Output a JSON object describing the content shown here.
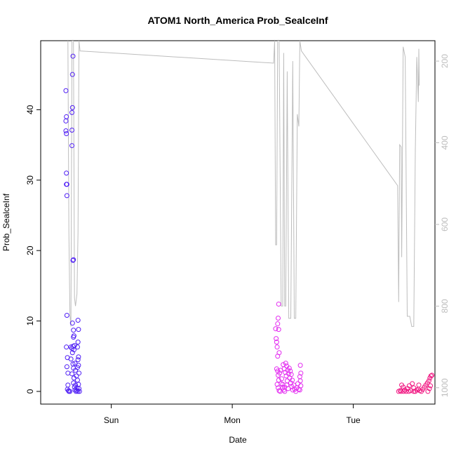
{
  "chart_data": {
    "type": "scatter",
    "title": "ATOM1 North_America Prob_SealceInf",
    "xlabel": "Date",
    "ylabel": "Prob_SealceInf",
    "x_ticks": [
      "Sun",
      "Mon",
      "Tue"
    ],
    "y_ticks": [
      0,
      10,
      20,
      30,
      40
    ],
    "y_range": [
      -1.8,
      49.8
    ],
    "right_axis": {
      "label": "",
      "reversed": true,
      "ticks": [
        200,
        400,
        600,
        800,
        1000
      ],
      "range": [
        1040,
        150
      ],
      "color": "#bdbdbd"
    },
    "x_units": "hours since Saturday 00:00",
    "x_range": [
      10.0,
      88.2
    ],
    "grid": false,
    "legend": "none",
    "colors": {
      "scatter_start": "#4f1ef5",
      "scatter_mid": "#e32bf0",
      "scatter_end": "#f0127f",
      "line": "#bdbdbd"
    },
    "series": [
      {
        "kind": "points",
        "color_key": "scatter_start",
        "points": [
          [
            15.0,
            42.7
          ],
          [
            15.1,
            39.0
          ],
          [
            15.0,
            38.4
          ],
          [
            15.0,
            37.0
          ],
          [
            15.1,
            36.6
          ],
          [
            15.1,
            31.0
          ],
          [
            15.2,
            29.4
          ],
          [
            15.1,
            29.4
          ],
          [
            15.2,
            27.8
          ],
          [
            15.2,
            10.8
          ],
          [
            15.1,
            6.3
          ],
          [
            15.3,
            4.8
          ],
          [
            15.2,
            3.5
          ],
          [
            15.4,
            2.6
          ],
          [
            15.4,
            0.9
          ],
          [
            15.3,
            0.3
          ],
          [
            15.5,
            0.1
          ],
          [
            15.6,
            0.0
          ],
          [
            15.8,
            0.0
          ],
          [
            16.0,
            6.3
          ],
          [
            16.2,
            6.1
          ],
          [
            16.3,
            5.5
          ],
          [
            16.0,
            4.6
          ],
          [
            16.4,
            3.9
          ],
          [
            16.5,
            3.3
          ],
          [
            16.2,
            2.5
          ],
          [
            16.6,
            1.9
          ],
          [
            16.5,
            1.2
          ],
          [
            16.7,
            0.6
          ],
          [
            16.8,
            0.2
          ],
          [
            17.0,
            0.0
          ],
          [
            17.2,
            0.1
          ],
          [
            16.8,
            4.0
          ],
          [
            16.9,
            3.0
          ],
          [
            17.1,
            2.2
          ],
          [
            16.9,
            0.9
          ],
          [
            17.2,
            0.5
          ],
          [
            17.3,
            1.6
          ],
          [
            16.3,
            45.0
          ],
          [
            16.4,
            47.6
          ],
          [
            16.3,
            40.3
          ],
          [
            16.2,
            39.6
          ],
          [
            16.2,
            37.1
          ],
          [
            16.2,
            34.9
          ],
          [
            16.5,
            18.7
          ],
          [
            16.4,
            18.6
          ],
          [
            16.3,
            9.7
          ],
          [
            16.5,
            8.7
          ],
          [
            16.6,
            7.9
          ],
          [
            16.5,
            7.7
          ],
          [
            16.7,
            6.5
          ],
          [
            16.4,
            6.4
          ],
          [
            16.6,
            5.9
          ],
          [
            17.4,
            10.1
          ],
          [
            17.5,
            8.8
          ],
          [
            17.4,
            7.0
          ],
          [
            17.3,
            6.3
          ],
          [
            17.5,
            4.9
          ],
          [
            17.4,
            4.5
          ],
          [
            17.5,
            3.7
          ],
          [
            17.3,
            3.4
          ],
          [
            17.6,
            2.6
          ],
          [
            17.5,
            1.0
          ],
          [
            17.6,
            0.4
          ],
          [
            17.7,
            0.0
          ],
          [
            17.4,
            0.0
          ]
        ]
      },
      {
        "kind": "points",
        "color_key": "scatter_mid",
        "points": [
          [
            56.6,
            8.9
          ],
          [
            56.7,
            7.5
          ],
          [
            56.8,
            7.0
          ],
          [
            56.9,
            6.3
          ],
          [
            57.0,
            5.0
          ],
          [
            56.8,
            3.2
          ],
          [
            57.0,
            2.9
          ],
          [
            57.1,
            2.3
          ],
          [
            57.2,
            1.6
          ],
          [
            56.9,
            1.0
          ],
          [
            57.1,
            0.5
          ],
          [
            57.3,
            0.1
          ],
          [
            57.5,
            0.0
          ],
          [
            57.2,
            12.4
          ],
          [
            57.1,
            10.4
          ],
          [
            57.0,
            9.6
          ],
          [
            57.2,
            8.8
          ],
          [
            57.3,
            5.5
          ],
          [
            57.6,
            3.0
          ],
          [
            57.4,
            2.6
          ],
          [
            57.8,
            1.8
          ],
          [
            57.7,
            1.1
          ],
          [
            58.0,
            0.5
          ],
          [
            58.2,
            0.2
          ],
          [
            58.4,
            0.0
          ],
          [
            58.1,
            3.8
          ],
          [
            58.3,
            3.2
          ],
          [
            58.5,
            2.7
          ],
          [
            58.7,
            2.2
          ],
          [
            58.9,
            1.5
          ],
          [
            58.6,
            4.0
          ],
          [
            58.8,
            3.6
          ],
          [
            59.0,
            3.0
          ],
          [
            59.2,
            2.5
          ],
          [
            59.4,
            1.9
          ],
          [
            59.6,
            1.2
          ],
          [
            59.8,
            0.7
          ],
          [
            60.0,
            0.2
          ],
          [
            59.3,
            3.3
          ],
          [
            59.5,
            2.9
          ],
          [
            59.7,
            2.4
          ],
          [
            59.9,
            1.6
          ],
          [
            60.2,
            0.9
          ],
          [
            60.4,
            0.3
          ],
          [
            60.6,
            0.0
          ],
          [
            61.5,
            3.7
          ],
          [
            61.6,
            2.6
          ],
          [
            61.4,
            2.1
          ],
          [
            61.5,
            1.5
          ],
          [
            61.6,
            0.8
          ],
          [
            61.4,
            0.2
          ],
          [
            58.0,
            1.0
          ],
          [
            58.4,
            0.6
          ],
          [
            58.8,
            0.9
          ],
          [
            59.1,
            0.4
          ],
          [
            60.8,
            0.5
          ],
          [
            61.0,
            1.1
          ],
          [
            61.2,
            0.3
          ]
        ]
      },
      {
        "kind": "points",
        "color_key": "scatter_end",
        "points": [
          [
            81.0,
            0.0
          ],
          [
            81.3,
            0.1
          ],
          [
            81.6,
            0.9
          ],
          [
            81.9,
            0.6
          ],
          [
            82.2,
            0.2
          ],
          [
            82.5,
            0.0
          ],
          [
            82.8,
            0.4
          ],
          [
            83.1,
            0.8
          ],
          [
            83.4,
            0.1
          ],
          [
            83.7,
            1.1
          ],
          [
            84.0,
            0.5
          ],
          [
            84.3,
            0.0
          ],
          [
            84.6,
            0.2
          ],
          [
            84.9,
            0.3
          ],
          [
            85.2,
            0.1
          ],
          [
            85.5,
            0.0
          ],
          [
            85.8,
            0.3
          ],
          [
            86.1,
            0.6
          ],
          [
            86.4,
            0.9
          ],
          [
            86.7,
            1.2
          ],
          [
            87.0,
            1.5
          ],
          [
            87.2,
            1.9
          ],
          [
            87.4,
            2.2
          ],
          [
            87.6,
            2.3
          ],
          [
            86.8,
            0.0
          ],
          [
            87.1,
            0.4
          ],
          [
            87.3,
            0.8
          ],
          [
            85.0,
            0.9
          ],
          [
            84.0,
            0.0
          ],
          [
            83.0,
            0.0
          ],
          [
            82.0,
            0.0
          ],
          [
            81.5,
            0.0
          ]
        ]
      },
      {
        "kind": "line",
        "axis": "right",
        "color_key": "line",
        "points": [
          [
            15.4,
            150
          ],
          [
            15.6,
            620
          ],
          [
            15.8,
            820
          ],
          [
            16.0,
            850
          ],
          [
            16.2,
            150
          ],
          [
            16.5,
            150
          ],
          [
            16.7,
            780
          ],
          [
            16.9,
            800
          ],
          [
            17.2,
            770
          ],
          [
            17.4,
            620
          ],
          [
            17.6,
            150
          ],
          [
            17.8,
            175
          ],
          [
            56.2,
            205
          ],
          [
            56.4,
            150
          ],
          [
            56.6,
            650
          ],
          [
            56.8,
            650
          ],
          [
            57.0,
            150
          ],
          [
            57.3,
            150
          ],
          [
            57.7,
            800
          ],
          [
            58.0,
            800
          ],
          [
            58.2,
            180
          ],
          [
            58.4,
            800
          ],
          [
            58.6,
            800
          ],
          [
            58.9,
            225
          ],
          [
            59.2,
            830
          ],
          [
            59.6,
            830
          ],
          [
            60.0,
            200
          ],
          [
            60.3,
            830
          ],
          [
            60.6,
            830
          ],
          [
            60.9,
            330
          ],
          [
            61.2,
            360
          ],
          [
            61.4,
            150
          ],
          [
            61.7,
            175
          ],
          [
            80.8,
            505
          ],
          [
            81.0,
            790
          ],
          [
            81.2,
            405
          ],
          [
            81.5,
            410
          ],
          [
            81.6,
            680
          ],
          [
            81.9,
            165
          ],
          [
            82.3,
            190
          ],
          [
            82.7,
            825
          ],
          [
            83.2,
            825
          ],
          [
            83.6,
            850
          ],
          [
            84.0,
            850
          ],
          [
            84.3,
            420
          ],
          [
            84.6,
            190
          ],
          [
            84.9,
            300
          ],
          [
            85.0,
            170
          ],
          [
            85.1,
            260
          ]
        ]
      }
    ]
  }
}
